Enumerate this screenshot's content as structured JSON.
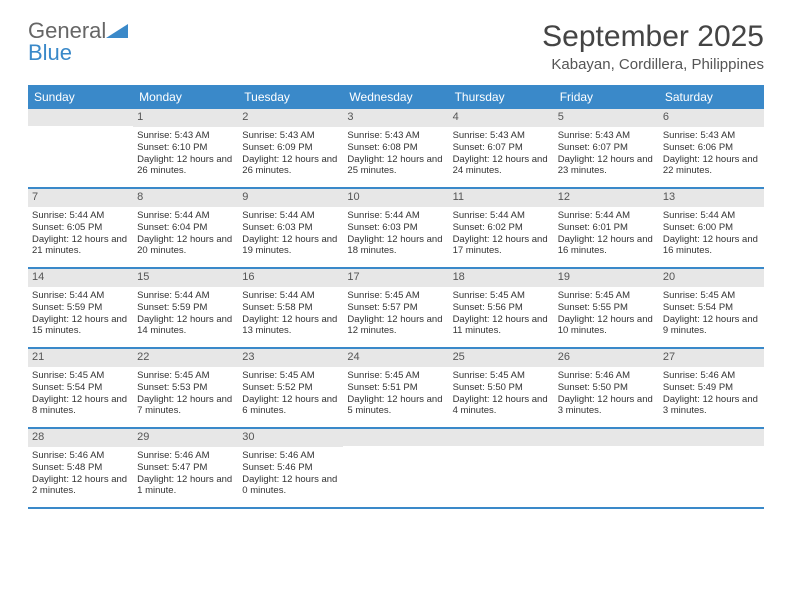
{
  "brand": {
    "name_part1": "General",
    "name_part2": "Blue",
    "text_color": "#666666",
    "accent_color": "#3a89c9"
  },
  "title": "September 2025",
  "location": "Kabayan, Cordillera, Philippines",
  "calendar": {
    "header_bg": "#3a89c9",
    "header_fg": "#ffffff",
    "daynum_bg": "#e7e7e7",
    "border_color": "#3a89c9",
    "day_names": [
      "Sunday",
      "Monday",
      "Tuesday",
      "Wednesday",
      "Thursday",
      "Friday",
      "Saturday"
    ],
    "weeks": [
      [
        {
          "day": "",
          "lines": []
        },
        {
          "day": "1",
          "lines": [
            "Sunrise: 5:43 AM",
            "Sunset: 6:10 PM",
            "Daylight: 12 hours and 26 minutes."
          ]
        },
        {
          "day": "2",
          "lines": [
            "Sunrise: 5:43 AM",
            "Sunset: 6:09 PM",
            "Daylight: 12 hours and 26 minutes."
          ]
        },
        {
          "day": "3",
          "lines": [
            "Sunrise: 5:43 AM",
            "Sunset: 6:08 PM",
            "Daylight: 12 hours and 25 minutes."
          ]
        },
        {
          "day": "4",
          "lines": [
            "Sunrise: 5:43 AM",
            "Sunset: 6:07 PM",
            "Daylight: 12 hours and 24 minutes."
          ]
        },
        {
          "day": "5",
          "lines": [
            "Sunrise: 5:43 AM",
            "Sunset: 6:07 PM",
            "Daylight: 12 hours and 23 minutes."
          ]
        },
        {
          "day": "6",
          "lines": [
            "Sunrise: 5:43 AM",
            "Sunset: 6:06 PM",
            "Daylight: 12 hours and 22 minutes."
          ]
        }
      ],
      [
        {
          "day": "7",
          "lines": [
            "Sunrise: 5:44 AM",
            "Sunset: 6:05 PM",
            "Daylight: 12 hours and 21 minutes."
          ]
        },
        {
          "day": "8",
          "lines": [
            "Sunrise: 5:44 AM",
            "Sunset: 6:04 PM",
            "Daylight: 12 hours and 20 minutes."
          ]
        },
        {
          "day": "9",
          "lines": [
            "Sunrise: 5:44 AM",
            "Sunset: 6:03 PM",
            "Daylight: 12 hours and 19 minutes."
          ]
        },
        {
          "day": "10",
          "lines": [
            "Sunrise: 5:44 AM",
            "Sunset: 6:03 PM",
            "Daylight: 12 hours and 18 minutes."
          ]
        },
        {
          "day": "11",
          "lines": [
            "Sunrise: 5:44 AM",
            "Sunset: 6:02 PM",
            "Daylight: 12 hours and 17 minutes."
          ]
        },
        {
          "day": "12",
          "lines": [
            "Sunrise: 5:44 AM",
            "Sunset: 6:01 PM",
            "Daylight: 12 hours and 16 minutes."
          ]
        },
        {
          "day": "13",
          "lines": [
            "Sunrise: 5:44 AM",
            "Sunset: 6:00 PM",
            "Daylight: 12 hours and 16 minutes."
          ]
        }
      ],
      [
        {
          "day": "14",
          "lines": [
            "Sunrise: 5:44 AM",
            "Sunset: 5:59 PM",
            "Daylight: 12 hours and 15 minutes."
          ]
        },
        {
          "day": "15",
          "lines": [
            "Sunrise: 5:44 AM",
            "Sunset: 5:59 PM",
            "Daylight: 12 hours and 14 minutes."
          ]
        },
        {
          "day": "16",
          "lines": [
            "Sunrise: 5:44 AM",
            "Sunset: 5:58 PM",
            "Daylight: 12 hours and 13 minutes."
          ]
        },
        {
          "day": "17",
          "lines": [
            "Sunrise: 5:45 AM",
            "Sunset: 5:57 PM",
            "Daylight: 12 hours and 12 minutes."
          ]
        },
        {
          "day": "18",
          "lines": [
            "Sunrise: 5:45 AM",
            "Sunset: 5:56 PM",
            "Daylight: 12 hours and 11 minutes."
          ]
        },
        {
          "day": "19",
          "lines": [
            "Sunrise: 5:45 AM",
            "Sunset: 5:55 PM",
            "Daylight: 12 hours and 10 minutes."
          ]
        },
        {
          "day": "20",
          "lines": [
            "Sunrise: 5:45 AM",
            "Sunset: 5:54 PM",
            "Daylight: 12 hours and 9 minutes."
          ]
        }
      ],
      [
        {
          "day": "21",
          "lines": [
            "Sunrise: 5:45 AM",
            "Sunset: 5:54 PM",
            "Daylight: 12 hours and 8 minutes."
          ]
        },
        {
          "day": "22",
          "lines": [
            "Sunrise: 5:45 AM",
            "Sunset: 5:53 PM",
            "Daylight: 12 hours and 7 minutes."
          ]
        },
        {
          "day": "23",
          "lines": [
            "Sunrise: 5:45 AM",
            "Sunset: 5:52 PM",
            "Daylight: 12 hours and 6 minutes."
          ]
        },
        {
          "day": "24",
          "lines": [
            "Sunrise: 5:45 AM",
            "Sunset: 5:51 PM",
            "Daylight: 12 hours and 5 minutes."
          ]
        },
        {
          "day": "25",
          "lines": [
            "Sunrise: 5:45 AM",
            "Sunset: 5:50 PM",
            "Daylight: 12 hours and 4 minutes."
          ]
        },
        {
          "day": "26",
          "lines": [
            "Sunrise: 5:46 AM",
            "Sunset: 5:50 PM",
            "Daylight: 12 hours and 3 minutes."
          ]
        },
        {
          "day": "27",
          "lines": [
            "Sunrise: 5:46 AM",
            "Sunset: 5:49 PM",
            "Daylight: 12 hours and 3 minutes."
          ]
        }
      ],
      [
        {
          "day": "28",
          "lines": [
            "Sunrise: 5:46 AM",
            "Sunset: 5:48 PM",
            "Daylight: 12 hours and 2 minutes."
          ]
        },
        {
          "day": "29",
          "lines": [
            "Sunrise: 5:46 AM",
            "Sunset: 5:47 PM",
            "Daylight: 12 hours and 1 minute."
          ]
        },
        {
          "day": "30",
          "lines": [
            "Sunrise: 5:46 AM",
            "Sunset: 5:46 PM",
            "Daylight: 12 hours and 0 minutes."
          ]
        },
        {
          "day": "",
          "lines": []
        },
        {
          "day": "",
          "lines": []
        },
        {
          "day": "",
          "lines": []
        },
        {
          "day": "",
          "lines": []
        }
      ]
    ]
  }
}
